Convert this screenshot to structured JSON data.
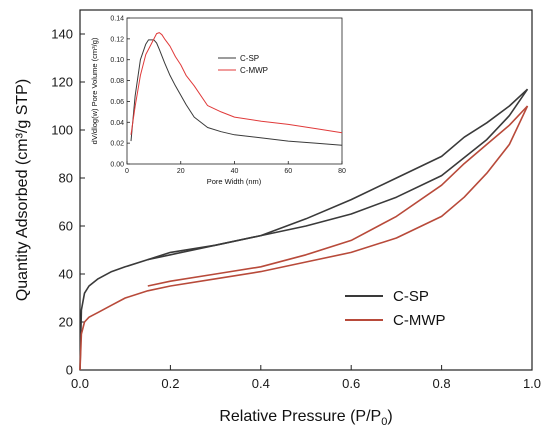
{
  "chart_data": [
    {
      "type": "line",
      "xlabel_main": "Relative Pressure (P/P",
      "xlabel_sub": "0",
      "xlabel_end": ")",
      "ylabel": "Quantity Adsorbed (cm³/g STP)",
      "xlim": [
        0,
        1.0
      ],
      "ylim": [
        0,
        150
      ],
      "xticks": [
        0.0,
        0.2,
        0.4,
        0.6,
        0.8,
        1.0
      ],
      "xtick_labels": [
        "0.0",
        "0.2",
        "0.4",
        "0.6",
        "0.8",
        "1.0"
      ],
      "yticks": [
        0,
        20,
        40,
        60,
        80,
        100,
        120,
        140
      ],
      "ytick_labels": [
        "0",
        "20",
        "40",
        "60",
        "80",
        "100",
        "120",
        "140"
      ],
      "legend_position": "lower-right",
      "series": [
        {
          "name": "C-SP",
          "color": "#3a3a3a",
          "adsorption": {
            "x": [
              0.0,
              0.003,
              0.01,
              0.02,
              0.04,
              0.07,
              0.1,
              0.15,
              0.2,
              0.3,
              0.4,
              0.5,
              0.6,
              0.7,
              0.8,
              0.9,
              0.95,
              0.99
            ],
            "y": [
              0,
              25,
              32,
              35,
              38,
              41,
              43,
              46,
              48,
              52,
              56,
              60,
              65,
              72,
              81,
              96,
              106,
              117
            ]
          },
          "desorption": {
            "x": [
              0.99,
              0.95,
              0.9,
              0.85,
              0.8,
              0.7,
              0.6,
              0.5,
              0.4,
              0.3,
              0.2,
              0.15
            ],
            "y": [
              117,
              110,
              103,
              97,
              89,
              80,
              71,
              63,
              56,
              52,
              49,
              46
            ]
          }
        },
        {
          "name": "C-MWP",
          "color": "#b84a3a",
          "adsorption": {
            "x": [
              0.0,
              0.003,
              0.01,
              0.02,
              0.04,
              0.07,
              0.1,
              0.15,
              0.2,
              0.3,
              0.4,
              0.5,
              0.6,
              0.7,
              0.8,
              0.85,
              0.9,
              0.95,
              0.99
            ],
            "y": [
              0,
              15,
              20,
              22,
              24,
              27,
              30,
              33,
              35,
              38,
              41,
              45,
              49,
              55,
              64,
              72,
              82,
              94,
              110
            ]
          },
          "desorption": {
            "x": [
              0.99,
              0.95,
              0.9,
              0.85,
              0.8,
              0.7,
              0.6,
              0.5,
              0.4,
              0.3,
              0.2,
              0.15
            ],
            "y": [
              110,
              102,
              94,
              86,
              77,
              64,
              54,
              48,
              43,
              40,
              37,
              35
            ]
          }
        }
      ]
    },
    {
      "type": "line",
      "xlabel": "Pore Width (nm)",
      "ylabel": "dV/dlog(w) Pore Volume (cm³/g)",
      "xlim": [
        0,
        80
      ],
      "ylim": [
        0,
        0.14
      ],
      "xticks": [
        0,
        20,
        40,
        60,
        80
      ],
      "xtick_labels": [
        "0",
        "20",
        "40",
        "60",
        "80"
      ],
      "yticks": [
        0,
        0.02,
        0.04,
        0.06,
        0.08,
        0.1,
        0.12,
        0.14
      ],
      "ytick_labels": [
        "0.00",
        "0.02",
        "0.04",
        "0.06",
        "0.08",
        "0.10",
        "0.12",
        "0.14"
      ],
      "legend_position": "center-right",
      "series": [
        {
          "name": "C-SP",
          "color": "#3a3a3a",
          "x": [
            1.5,
            3,
            5,
            7,
            8,
            9,
            10,
            11,
            12,
            14,
            16,
            18,
            20,
            22,
            25,
            30,
            35,
            40,
            50,
            60,
            70,
            80
          ],
          "y": [
            0.022,
            0.065,
            0.1,
            0.115,
            0.119,
            0.119,
            0.119,
            0.116,
            0.11,
            0.097,
            0.085,
            0.075,
            0.066,
            0.057,
            0.045,
            0.035,
            0.031,
            0.028,
            0.025,
            0.022,
            0.02,
            0.018
          ]
        },
        {
          "name": "C-MWP",
          "color": "#e03a3a",
          "x": [
            1.5,
            3,
            5,
            7,
            9,
            10,
            11,
            12,
            13,
            14,
            16,
            18,
            20,
            22,
            25,
            30,
            35,
            40,
            50,
            60,
            70,
            80
          ],
          "y": [
            0.028,
            0.055,
            0.085,
            0.105,
            0.115,
            0.12,
            0.125,
            0.126,
            0.124,
            0.12,
            0.113,
            0.103,
            0.095,
            0.085,
            0.075,
            0.056,
            0.05,
            0.045,
            0.041,
            0.038,
            0.034,
            0.03
          ]
        }
      ]
    }
  ]
}
